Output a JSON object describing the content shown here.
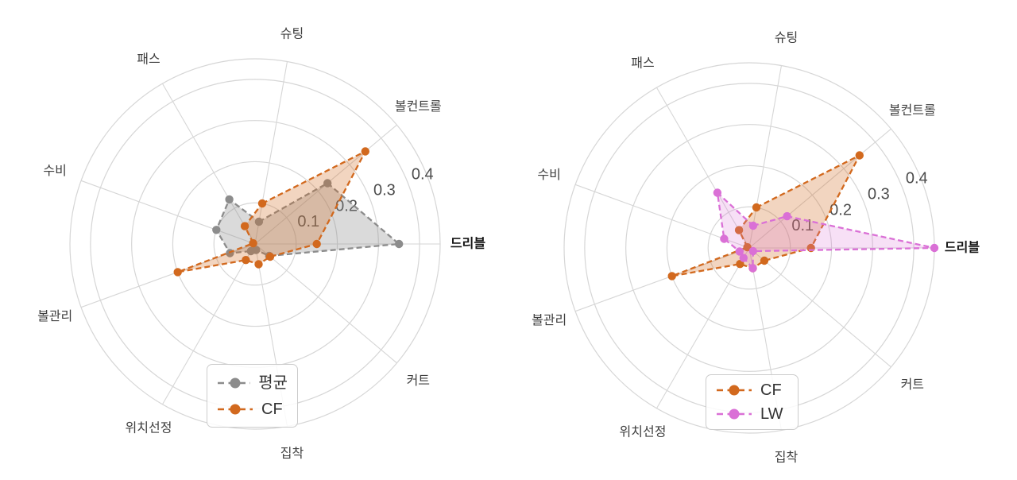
{
  "figure": {
    "background": "#ffffff",
    "title": ""
  },
  "palette": {
    "grid": "#d6d6d6",
    "tick_label": "#4d4d4d",
    "category_label": "#3f3f3f",
    "emphasized_category_label": "#141414",
    "legend_text": "#333333",
    "gray_series": "#8c8c8c",
    "orange_series": "#d2691e",
    "orchid_series": "#da70d6"
  },
  "chart_data": [
    {
      "type": "radar",
      "title": "",
      "categories": [
        "슈팅",
        "볼컨트롤",
        "드리블",
        "커트",
        "집착",
        "위치선정",
        "볼관리",
        "수비",
        "패스"
      ],
      "emphasized_category": "드리블",
      "r_ticks": [
        "0.1",
        "0.2",
        "0.3",
        "0.4"
      ],
      "r_tick_values": [
        0.1,
        0.2,
        0.3,
        0.4
      ],
      "r_max": 0.45,
      "grid": true,
      "line_style": "dashed",
      "marker": "circle",
      "legend_position": "lower center",
      "series": [
        {
          "name": "평균",
          "color": "#8c8c8c",
          "fill_alpha": 0.32,
          "values": [
            0.055,
            0.23,
            0.35,
            0.045,
            0.015,
            0.02,
            0.065,
            0.1,
            0.125
          ]
        },
        {
          "name": "CF",
          "color": "#d2691e",
          "fill_alpha": 0.28,
          "values": [
            0.1,
            0.35,
            0.15,
            0.048,
            0.05,
            0.045,
            0.2,
            0.005,
            0.05
          ]
        }
      ]
    },
    {
      "type": "radar",
      "title": "",
      "categories": [
        "슈팅",
        "볼컨트롤",
        "드리블",
        "커트",
        "집착",
        "위치선정",
        "볼관리",
        "수비",
        "패스"
      ],
      "emphasized_category": "드리블",
      "r_ticks": [
        "0.1",
        "0.2",
        "0.3",
        "0.4"
      ],
      "r_tick_values": [
        0.1,
        0.2,
        0.3,
        0.4
      ],
      "r_max": 0.45,
      "grid": true,
      "line_style": "dashed",
      "marker": "circle",
      "legend_position": "lower center",
      "series": [
        {
          "name": "CF",
          "color": "#d2691e",
          "fill_alpha": 0.28,
          "values": [
            0.1,
            0.35,
            0.15,
            0.048,
            0.05,
            0.045,
            0.2,
            0.005,
            0.05
          ]
        },
        {
          "name": "LW",
          "color": "#da70d6",
          "fill_alpha": 0.22,
          "values": [
            0.055,
            0.12,
            0.45,
            0.012,
            0.05,
            0.028,
            0.025,
            0.065,
            0.155
          ]
        }
      ]
    }
  ]
}
